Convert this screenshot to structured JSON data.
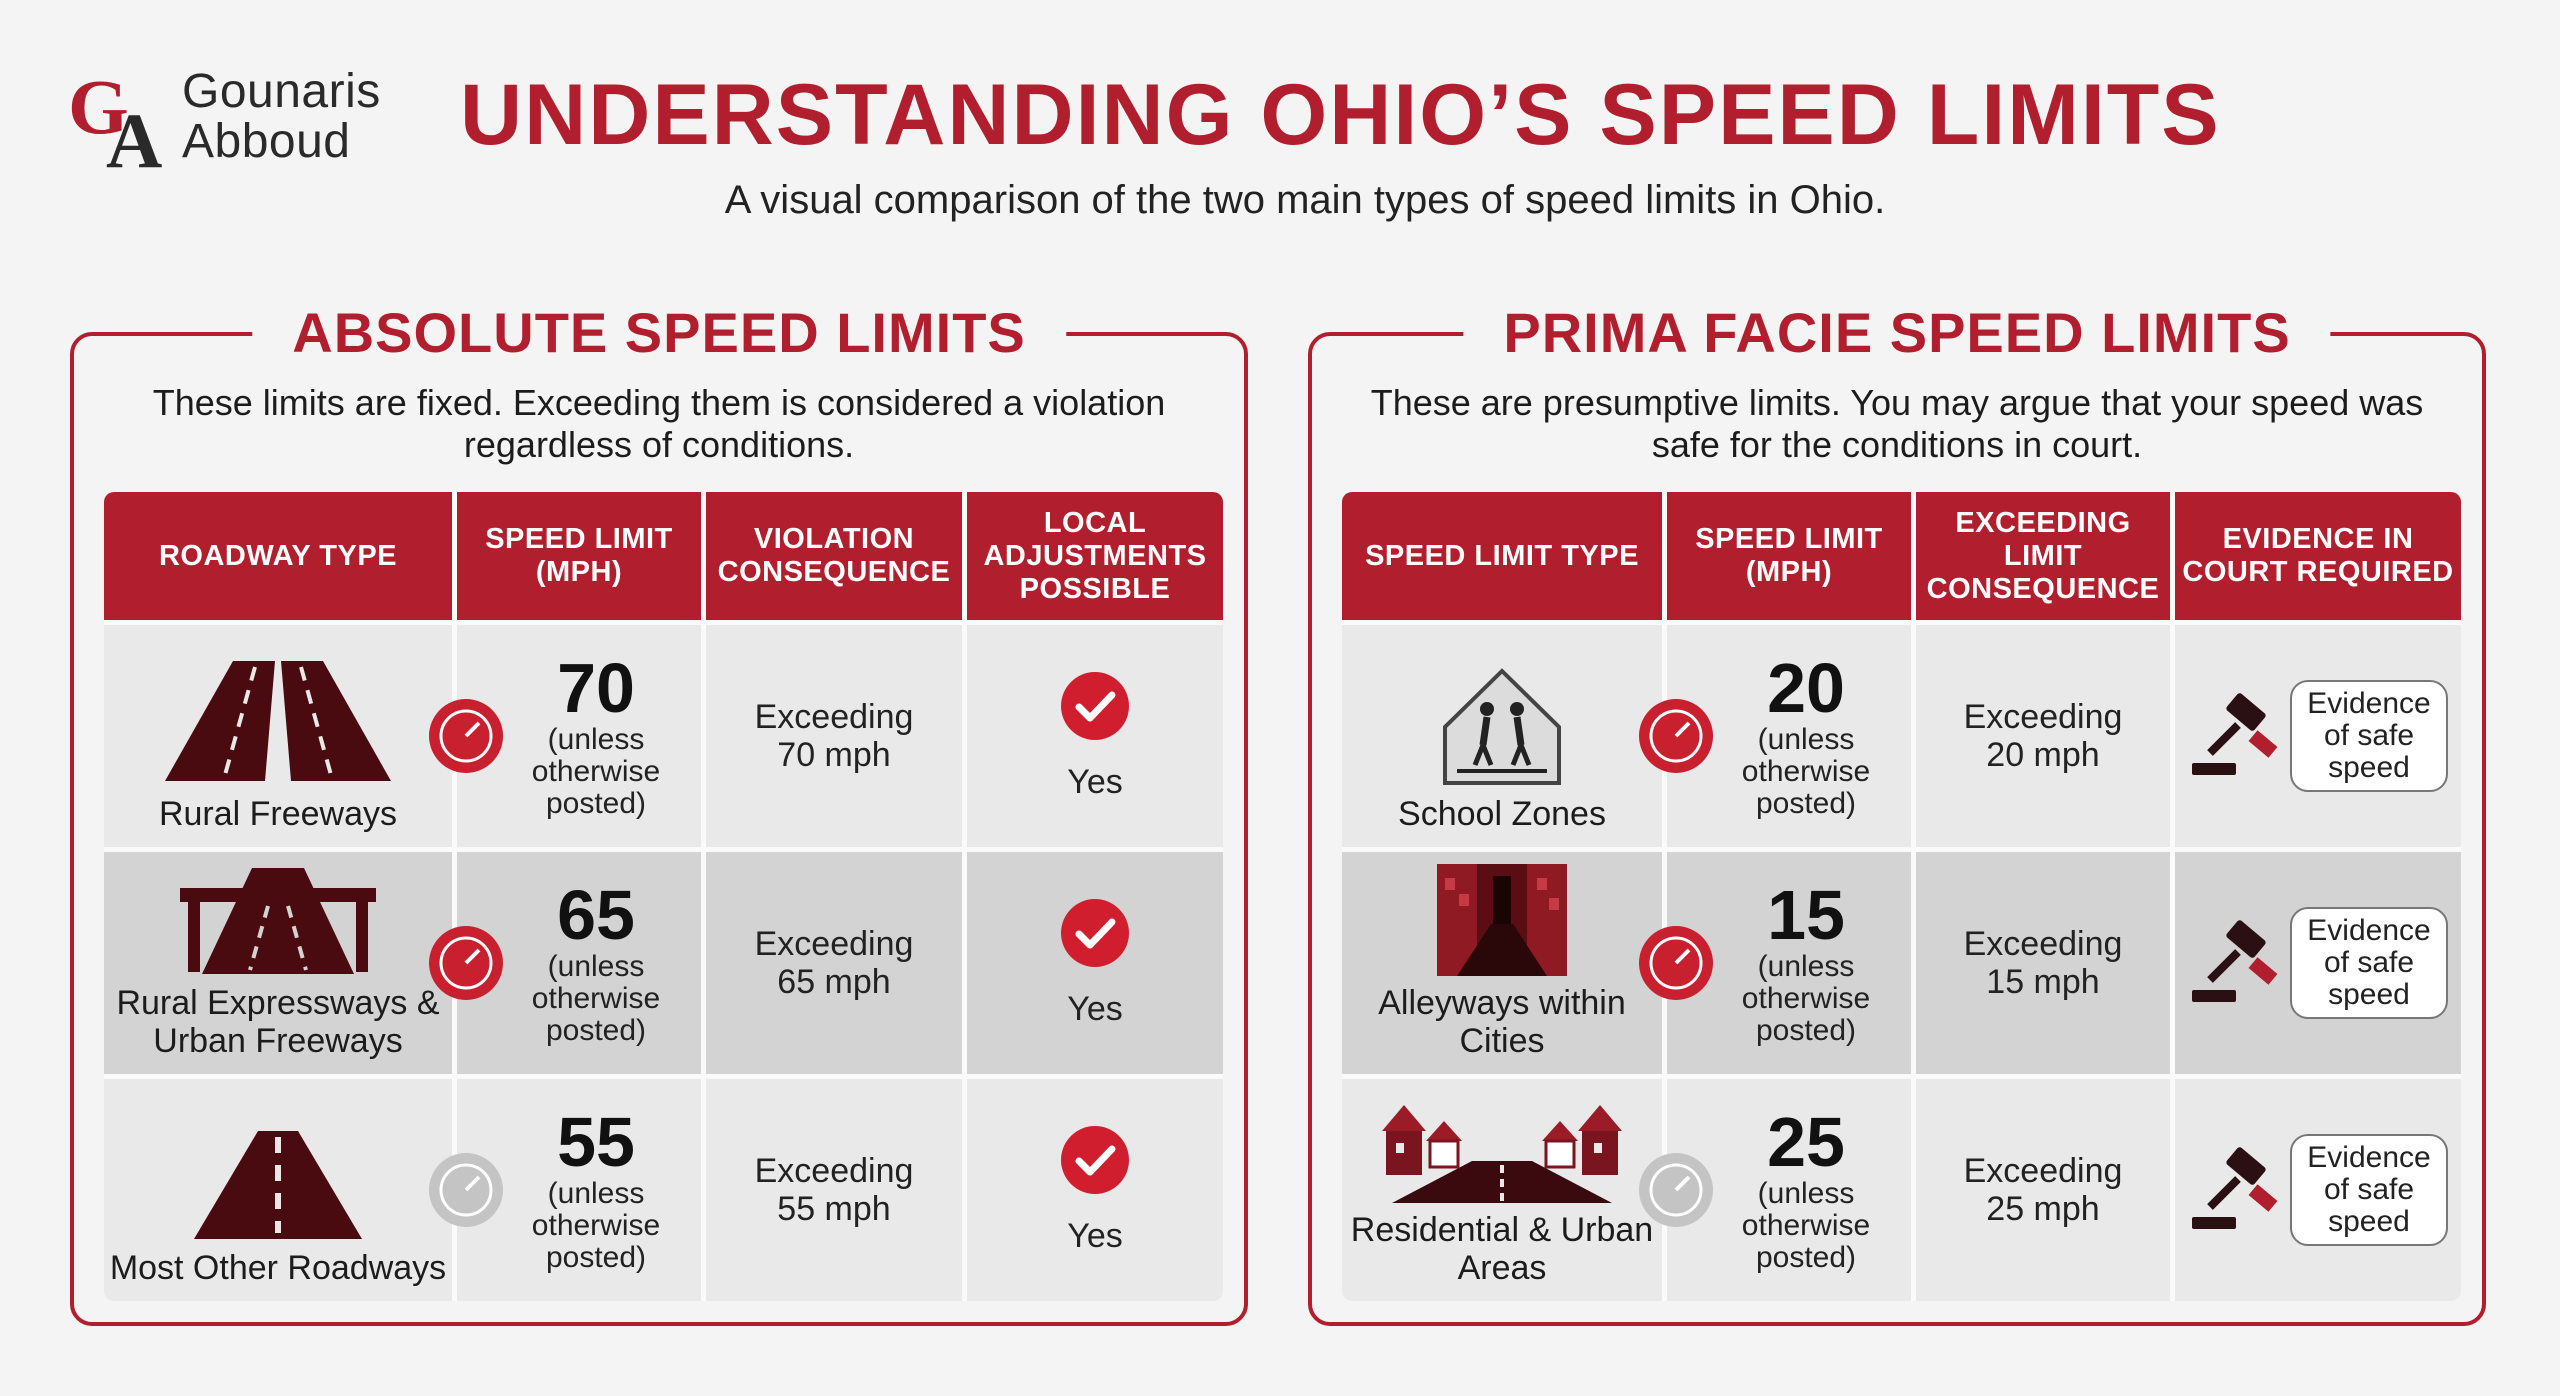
{
  "brand": {
    "line1": "Gounaris",
    "line2": "Abboud",
    "accent": "#b11f2e"
  },
  "header": {
    "title": "UNDERSTANDING OHIO’S SPEED LIMITS",
    "subtitle": "A visual comparison of the two main types of speed limits in Ohio."
  },
  "absolute": {
    "title": "ABSOLUTE SPEED LIMITS",
    "description": "These limits are fixed. Exceeding them is considered a violation regardless of conditions.",
    "headers": [
      "ROADWAY TYPE",
      "SPEED LIMIT (MPH)",
      "VIOLATION CONSEQUENCE",
      "LOCAL ADJUSTMENTS POSSIBLE"
    ],
    "rows": [
      {
        "road": "Rural Freeways",
        "icon": "freeway-icon",
        "speed": "70",
        "note": "(unless otherwise posted)",
        "consequence": "Exceeding 70 mph",
        "adjust": "Yes"
      },
      {
        "road": "Rural Expressways & Urban Freeways",
        "icon": "overpass-icon",
        "speed": "65",
        "note": "(unless otherwise posted)",
        "consequence": "Exceeding 65 mph",
        "adjust": "Yes"
      },
      {
        "road": "Most Other Roadways",
        "icon": "road-icon",
        "speed": "55",
        "note": "(unless otherwise posted)",
        "consequence": "Exceeding 55 mph",
        "adjust": "Yes"
      }
    ]
  },
  "prima": {
    "title": "PRIMA FACIE SPEED LIMITS",
    "description": "These are presumptive limits. You may argue that your speed was safe for the conditions in court.",
    "headers": [
      "SPEED LIMIT TYPE",
      "SPEED LIMIT (MPH)",
      "EXCEEDING LIMIT CONSEQUENCE",
      "EVIDENCE IN COURT REQUIRED"
    ],
    "rows": [
      {
        "zone": "School Zones",
        "icon": "school-crossing-icon",
        "speed": "20",
        "note": "(unless otherwise posted)",
        "consequence": "Exceeding 20 mph",
        "evidence": "Evidence of safe speed"
      },
      {
        "zone": "Alleyways within Cities",
        "icon": "alley-icon",
        "speed": "15",
        "note": "(unless otherwise posted)",
        "consequence": "Exceeding 15 mph",
        "evidence": "Evidence of safe speed"
      },
      {
        "zone": "Residential & Urban Areas",
        "icon": "houses-icon",
        "speed": "25",
        "note": "(unless otherwise posted)",
        "consequence": "Exceeding 25 mph",
        "evidence": "Evidence of safe speed"
      }
    ]
  }
}
